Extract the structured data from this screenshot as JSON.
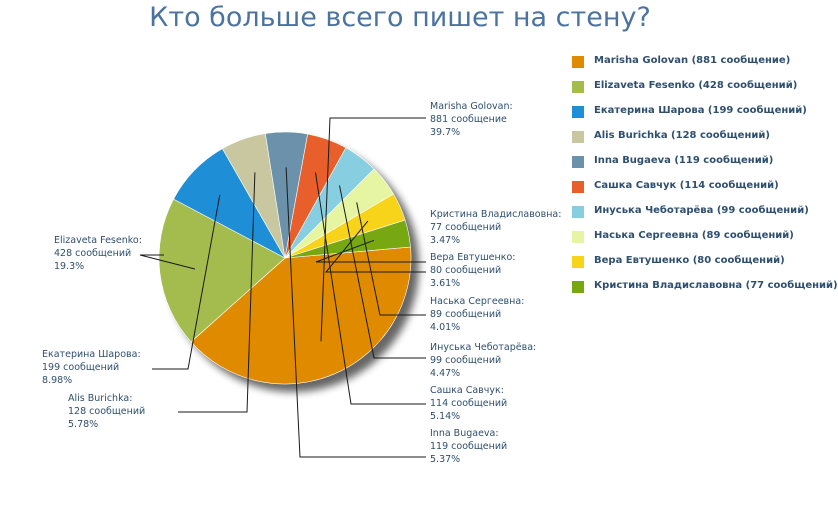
{
  "chart_data": {
    "type": "pie",
    "title": "Кто больше всего пишет на стену?",
    "legend_position": "right",
    "slices": [
      {
        "name": "Marisha Golovan",
        "value": 881,
        "callout_count": "881 сообщение",
        "percent": "39.7%",
        "legend": "Marisha Golovan (881 сообщение)",
        "color": "#e08a00"
      },
      {
        "name": "Elizaveta Fesenko",
        "value": 428,
        "callout_count": "428 сообщений",
        "percent": "19.3%",
        "legend": "Elizaveta Fesenko (428 сообщений)",
        "color": "#a4bb4d"
      },
      {
        "name": "Екатерина Шарова",
        "value": 199,
        "callout_count": "199 сообщений",
        "percent": "8.98%",
        "legend": "Екатерина Шарова (199 сообщений)",
        "color": "#1e8ed6"
      },
      {
        "name": "Alis Burichka",
        "value": 128,
        "callout_count": "128 сообщений",
        "percent": "5.78%",
        "legend": "Alis Burichka (128 сообщений)",
        "color": "#c9c79f"
      },
      {
        "name": "Inna Bugaeva",
        "value": 119,
        "callout_count": "119 сообщений",
        "percent": "5.37%",
        "legend": "Inna Bugaeva (119 сообщений)",
        "color": "#6b92aa"
      },
      {
        "name": "Сашка Савчук",
        "value": 114,
        "callout_count": "114 сообщений",
        "percent": "5.14%",
        "legend": "Сашка Савчук (114 сообщений)",
        "color": "#e85f2b"
      },
      {
        "name": "Инуська Чеботарёва",
        "value": 99,
        "callout_count": "99 сообщений",
        "percent": "4.47%",
        "legend": "Инуська Чеботарёва (99 сообщений)",
        "color": "#87cfe0"
      },
      {
        "name": "Наська Сергеевна",
        "value": 89,
        "callout_count": "89 сообщений",
        "percent": "4.01%",
        "legend": "Наська Сергеевна (89 сообщений)",
        "color": "#e6f5a2"
      },
      {
        "name": "Вера Евтушенко",
        "value": 80,
        "callout_count": "80 сообщений",
        "percent": "3.61%",
        "legend": "Вера Евтушенко (80 сообщений)",
        "color": "#f7d31a"
      },
      {
        "name": "Кристина Владиславовна",
        "value": 77,
        "callout_count": "77 сообщений",
        "percent": "3.47%",
        "legend": "Кристина Владиславовна (77 сообщений)",
        "color": "#77a812"
      }
    ]
  }
}
